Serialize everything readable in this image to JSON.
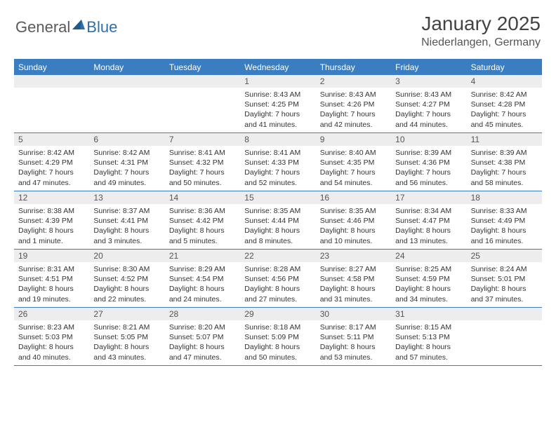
{
  "logo": {
    "text_general": "General",
    "text_blue": "Blue",
    "triangle_color": "#2f6fa8"
  },
  "header": {
    "month_title": "January 2025",
    "location": "Niederlangen, Germany"
  },
  "colors": {
    "header_bar": "#3a7ec1",
    "day_num_bg": "#ededed",
    "text": "#333333",
    "background": "#ffffff"
  },
  "days_of_week": [
    "Sunday",
    "Monday",
    "Tuesday",
    "Wednesday",
    "Thursday",
    "Friday",
    "Saturday"
  ],
  "weeks": [
    [
      null,
      null,
      null,
      {
        "num": "1",
        "sunrise": "Sunrise: 8:43 AM",
        "sunset": "Sunset: 4:25 PM",
        "daylight1": "Daylight: 7 hours",
        "daylight2": "and 41 minutes."
      },
      {
        "num": "2",
        "sunrise": "Sunrise: 8:43 AM",
        "sunset": "Sunset: 4:26 PM",
        "daylight1": "Daylight: 7 hours",
        "daylight2": "and 42 minutes."
      },
      {
        "num": "3",
        "sunrise": "Sunrise: 8:43 AM",
        "sunset": "Sunset: 4:27 PM",
        "daylight1": "Daylight: 7 hours",
        "daylight2": "and 44 minutes."
      },
      {
        "num": "4",
        "sunrise": "Sunrise: 8:42 AM",
        "sunset": "Sunset: 4:28 PM",
        "daylight1": "Daylight: 7 hours",
        "daylight2": "and 45 minutes."
      }
    ],
    [
      {
        "num": "5",
        "sunrise": "Sunrise: 8:42 AM",
        "sunset": "Sunset: 4:29 PM",
        "daylight1": "Daylight: 7 hours",
        "daylight2": "and 47 minutes."
      },
      {
        "num": "6",
        "sunrise": "Sunrise: 8:42 AM",
        "sunset": "Sunset: 4:31 PM",
        "daylight1": "Daylight: 7 hours",
        "daylight2": "and 49 minutes."
      },
      {
        "num": "7",
        "sunrise": "Sunrise: 8:41 AM",
        "sunset": "Sunset: 4:32 PM",
        "daylight1": "Daylight: 7 hours",
        "daylight2": "and 50 minutes."
      },
      {
        "num": "8",
        "sunrise": "Sunrise: 8:41 AM",
        "sunset": "Sunset: 4:33 PM",
        "daylight1": "Daylight: 7 hours",
        "daylight2": "and 52 minutes."
      },
      {
        "num": "9",
        "sunrise": "Sunrise: 8:40 AM",
        "sunset": "Sunset: 4:35 PM",
        "daylight1": "Daylight: 7 hours",
        "daylight2": "and 54 minutes."
      },
      {
        "num": "10",
        "sunrise": "Sunrise: 8:39 AM",
        "sunset": "Sunset: 4:36 PM",
        "daylight1": "Daylight: 7 hours",
        "daylight2": "and 56 minutes."
      },
      {
        "num": "11",
        "sunrise": "Sunrise: 8:39 AM",
        "sunset": "Sunset: 4:38 PM",
        "daylight1": "Daylight: 7 hours",
        "daylight2": "and 58 minutes."
      }
    ],
    [
      {
        "num": "12",
        "sunrise": "Sunrise: 8:38 AM",
        "sunset": "Sunset: 4:39 PM",
        "daylight1": "Daylight: 8 hours",
        "daylight2": "and 1 minute."
      },
      {
        "num": "13",
        "sunrise": "Sunrise: 8:37 AM",
        "sunset": "Sunset: 4:41 PM",
        "daylight1": "Daylight: 8 hours",
        "daylight2": "and 3 minutes."
      },
      {
        "num": "14",
        "sunrise": "Sunrise: 8:36 AM",
        "sunset": "Sunset: 4:42 PM",
        "daylight1": "Daylight: 8 hours",
        "daylight2": "and 5 minutes."
      },
      {
        "num": "15",
        "sunrise": "Sunrise: 8:35 AM",
        "sunset": "Sunset: 4:44 PM",
        "daylight1": "Daylight: 8 hours",
        "daylight2": "and 8 minutes."
      },
      {
        "num": "16",
        "sunrise": "Sunrise: 8:35 AM",
        "sunset": "Sunset: 4:46 PM",
        "daylight1": "Daylight: 8 hours",
        "daylight2": "and 10 minutes."
      },
      {
        "num": "17",
        "sunrise": "Sunrise: 8:34 AM",
        "sunset": "Sunset: 4:47 PM",
        "daylight1": "Daylight: 8 hours",
        "daylight2": "and 13 minutes."
      },
      {
        "num": "18",
        "sunrise": "Sunrise: 8:33 AM",
        "sunset": "Sunset: 4:49 PM",
        "daylight1": "Daylight: 8 hours",
        "daylight2": "and 16 minutes."
      }
    ],
    [
      {
        "num": "19",
        "sunrise": "Sunrise: 8:31 AM",
        "sunset": "Sunset: 4:51 PM",
        "daylight1": "Daylight: 8 hours",
        "daylight2": "and 19 minutes."
      },
      {
        "num": "20",
        "sunrise": "Sunrise: 8:30 AM",
        "sunset": "Sunset: 4:52 PM",
        "daylight1": "Daylight: 8 hours",
        "daylight2": "and 22 minutes."
      },
      {
        "num": "21",
        "sunrise": "Sunrise: 8:29 AM",
        "sunset": "Sunset: 4:54 PM",
        "daylight1": "Daylight: 8 hours",
        "daylight2": "and 24 minutes."
      },
      {
        "num": "22",
        "sunrise": "Sunrise: 8:28 AM",
        "sunset": "Sunset: 4:56 PM",
        "daylight1": "Daylight: 8 hours",
        "daylight2": "and 27 minutes."
      },
      {
        "num": "23",
        "sunrise": "Sunrise: 8:27 AM",
        "sunset": "Sunset: 4:58 PM",
        "daylight1": "Daylight: 8 hours",
        "daylight2": "and 31 minutes."
      },
      {
        "num": "24",
        "sunrise": "Sunrise: 8:25 AM",
        "sunset": "Sunset: 4:59 PM",
        "daylight1": "Daylight: 8 hours",
        "daylight2": "and 34 minutes."
      },
      {
        "num": "25",
        "sunrise": "Sunrise: 8:24 AM",
        "sunset": "Sunset: 5:01 PM",
        "daylight1": "Daylight: 8 hours",
        "daylight2": "and 37 minutes."
      }
    ],
    [
      {
        "num": "26",
        "sunrise": "Sunrise: 8:23 AM",
        "sunset": "Sunset: 5:03 PM",
        "daylight1": "Daylight: 8 hours",
        "daylight2": "and 40 minutes."
      },
      {
        "num": "27",
        "sunrise": "Sunrise: 8:21 AM",
        "sunset": "Sunset: 5:05 PM",
        "daylight1": "Daylight: 8 hours",
        "daylight2": "and 43 minutes."
      },
      {
        "num": "28",
        "sunrise": "Sunrise: 8:20 AM",
        "sunset": "Sunset: 5:07 PM",
        "daylight1": "Daylight: 8 hours",
        "daylight2": "and 47 minutes."
      },
      {
        "num": "29",
        "sunrise": "Sunrise: 8:18 AM",
        "sunset": "Sunset: 5:09 PM",
        "daylight1": "Daylight: 8 hours",
        "daylight2": "and 50 minutes."
      },
      {
        "num": "30",
        "sunrise": "Sunrise: 8:17 AM",
        "sunset": "Sunset: 5:11 PM",
        "daylight1": "Daylight: 8 hours",
        "daylight2": "and 53 minutes."
      },
      {
        "num": "31",
        "sunrise": "Sunrise: 8:15 AM",
        "sunset": "Sunset: 5:13 PM",
        "daylight1": "Daylight: 8 hours",
        "daylight2": "and 57 minutes."
      },
      null
    ]
  ]
}
